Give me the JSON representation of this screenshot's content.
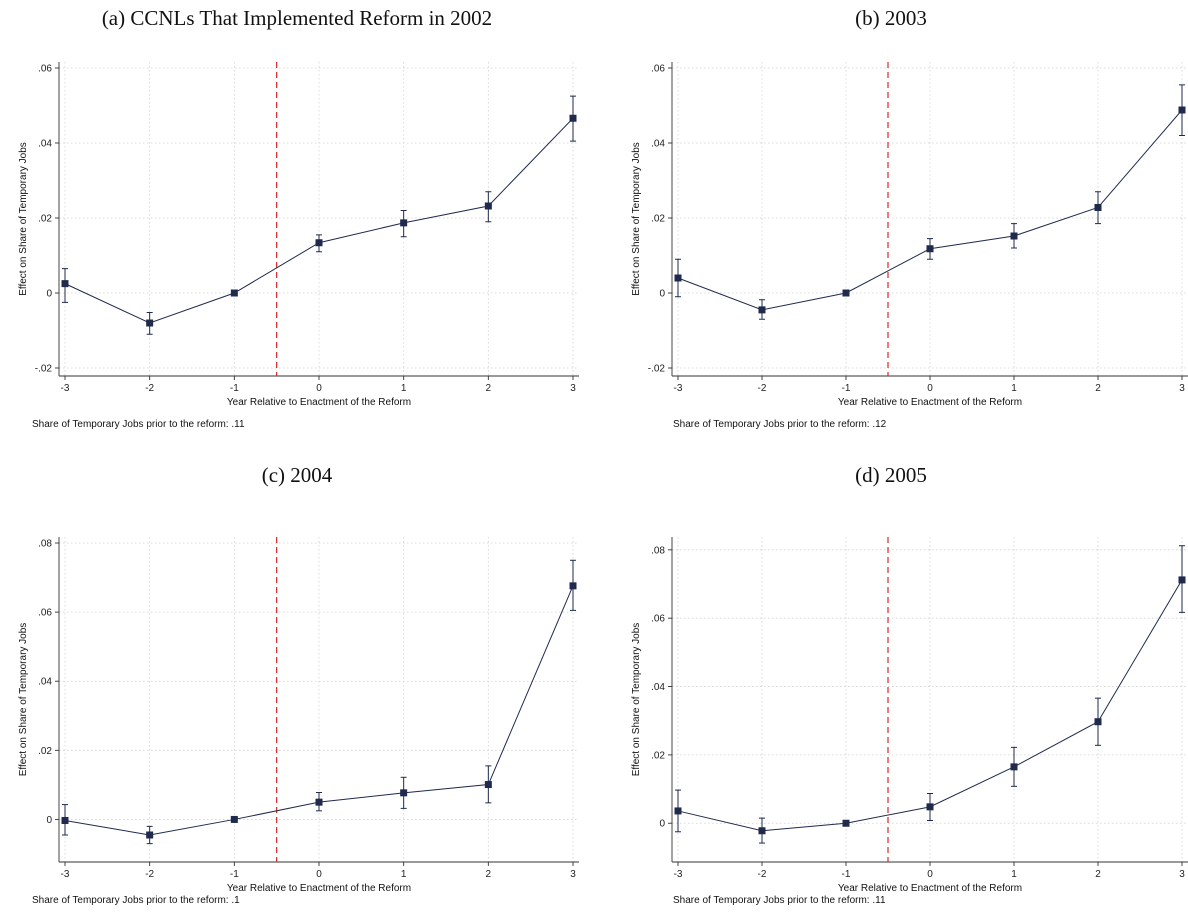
{
  "chart_data": [
    {
      "type": "line",
      "title": "(a) CCNLs That Implemented Reform in 2002",
      "xlabel": "Year Relative to Enactment of the Reform",
      "ylabel": "Effect on Share of Temporary Jobs",
      "note": "Share of Temporary Jobs prior to the reform: .11",
      "x": [
        -3,
        -2,
        -1,
        0,
        1,
        2,
        3
      ],
      "y": [
        0.0025,
        -0.008,
        0.0,
        0.0134,
        0.0187,
        0.0232,
        0.0466
      ],
      "ci_low": [
        -0.0025,
        -0.011,
        0.0,
        0.011,
        0.015,
        0.019,
        0.0405
      ],
      "ci_high": [
        0.0065,
        -0.0052,
        0.0,
        0.0155,
        0.022,
        0.027,
        0.0525
      ],
      "yticks": [
        -0.02,
        0,
        0.02,
        0.04,
        0.06
      ],
      "ytick_labels": [
        "-.02",
        "0",
        ".02",
        ".04",
        ".06"
      ],
      "xticks": [
        -3,
        -2,
        -1,
        0,
        1,
        2,
        3
      ],
      "xtick_labels": [
        "-3",
        "-2",
        "-1",
        "0",
        "1",
        "2",
        "3"
      ],
      "xlim": [
        -3,
        3
      ],
      "ylim": [
        -0.02,
        0.06
      ],
      "reform_line_x": -0.5,
      "grid": true,
      "colors": {
        "series": "#1f2a4d",
        "reform_line": "#d62728",
        "grid": "#d0d0d0"
      }
    },
    {
      "type": "line",
      "title": "(b) 2003",
      "xlabel": "Year Relative to Enactment of the Reform",
      "ylabel": "Effect on Share of Temporary Jobs",
      "note": "Share of Temporary Jobs prior to the reform: .12",
      "x": [
        -3,
        -2,
        -1,
        0,
        1,
        2,
        3
      ],
      "y": [
        0.004,
        -0.0045,
        0.0,
        0.0118,
        0.0152,
        0.0228,
        0.0488
      ],
      "ci_low": [
        -0.001,
        -0.007,
        0.0,
        0.009,
        0.012,
        0.0185,
        0.042
      ],
      "ci_high": [
        0.009,
        -0.0018,
        0.0,
        0.0145,
        0.0185,
        0.027,
        0.0555
      ],
      "yticks": [
        -0.02,
        0,
        0.02,
        0.04,
        0.06
      ],
      "ytick_labels": [
        "-.02",
        "0",
        ".02",
        ".04",
        ".06"
      ],
      "xticks": [
        -3,
        -2,
        -1,
        0,
        1,
        2,
        3
      ],
      "xtick_labels": [
        "-3",
        "-2",
        "-1",
        "0",
        "1",
        "2",
        "3"
      ],
      "xlim": [
        -3,
        3
      ],
      "ylim": [
        -0.02,
        0.06
      ],
      "reform_line_x": -0.5,
      "grid": true,
      "colors": {
        "series": "#1f2a4d",
        "reform_line": "#d62728",
        "grid": "#d0d0d0"
      }
    },
    {
      "type": "line",
      "title": "(c) 2004",
      "xlabel": "Year Relative to Enactment of the Reform",
      "ylabel": "Effect on Share of Temporary Jobs",
      "note": "Share of Temporary Jobs prior to the reform: .1",
      "x": [
        -3,
        -2,
        -1,
        0,
        1,
        2,
        3
      ],
      "y": [
        -0.0003,
        -0.0045,
        0.0,
        0.005,
        0.0077,
        0.0101,
        0.0676
      ],
      "ci_low": [
        -0.0045,
        -0.007,
        0.0,
        0.0025,
        0.0032,
        0.0048,
        0.0605
      ],
      "ci_high": [
        0.0043,
        -0.002,
        0.0,
        0.0078,
        0.0122,
        0.0155,
        0.075
      ],
      "yticks": [
        0,
        0.02,
        0.04,
        0.06,
        0.08
      ],
      "ytick_labels": [
        "0",
        ".02",
        ".04",
        ".06",
        ".08"
      ],
      "xticks": [
        -3,
        -2,
        -1,
        0,
        1,
        2,
        3
      ],
      "xtick_labels": [
        "-3",
        "-2",
        "-1",
        "0",
        "1",
        "2",
        "3"
      ],
      "xlim": [
        -3,
        3
      ],
      "ylim": [
        -0.01,
        0.08
      ],
      "reform_line_x": -0.5,
      "grid": true,
      "colors": {
        "series": "#1f2a4d",
        "reform_line": "#d62728",
        "grid": "#d0d0d0"
      }
    },
    {
      "type": "line",
      "title": "(d) 2005",
      "xlabel": "Year Relative to Enactment of the Reform",
      "ylabel": "Effect on Share of Temporary Jobs",
      "note": "Share of Temporary Jobs prior to the reform: .11",
      "x": [
        -3,
        -2,
        -1,
        0,
        1,
        2,
        3
      ],
      "y": [
        0.0036,
        -0.0022,
        0.0,
        0.0048,
        0.0165,
        0.0297,
        0.0712
      ],
      "ci_low": [
        -0.0025,
        -0.0058,
        0.0,
        0.0008,
        0.0108,
        0.0228,
        0.0617
      ],
      "ci_high": [
        0.0097,
        0.0015,
        0.0,
        0.0087,
        0.0222,
        0.0366,
        0.0812
      ],
      "yticks": [
        0,
        0.02,
        0.04,
        0.06,
        0.08
      ],
      "ytick_labels": [
        "0",
        ".02",
        ".04",
        ".06",
        ".08"
      ],
      "xticks": [
        -3,
        -2,
        -1,
        0,
        1,
        2,
        3
      ],
      "xtick_labels": [
        "-3",
        "-2",
        "-1",
        "0",
        "1",
        "2",
        "3"
      ],
      "xlim": [
        -3,
        3
      ],
      "ylim": [
        -0.009,
        0.082
      ],
      "reform_line_x": -0.5,
      "grid": true,
      "colors": {
        "series": "#1f2a4d",
        "reform_line": "#d62728",
        "grid": "#d0d0d0"
      }
    }
  ]
}
